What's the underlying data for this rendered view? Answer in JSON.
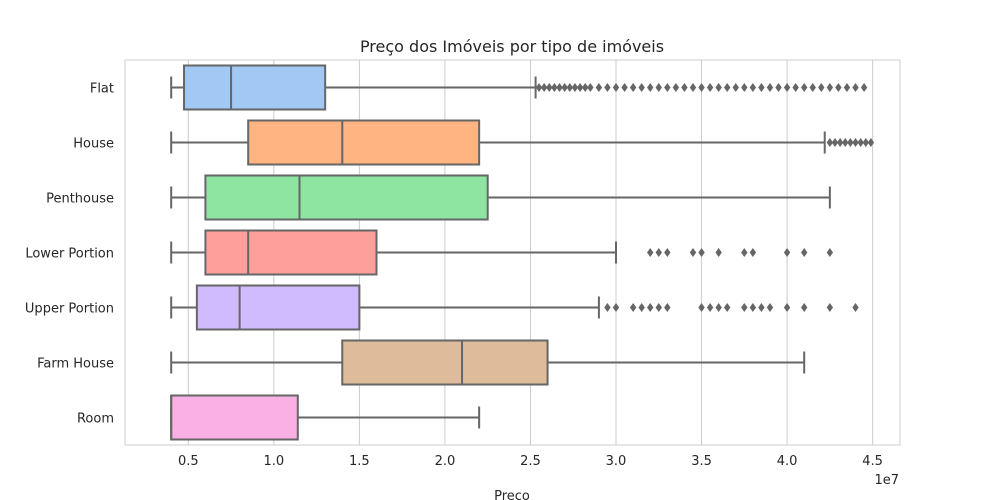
{
  "chart_data": {
    "type": "boxplot",
    "orientation": "horizontal",
    "title": "Preço dos Imóveis por tipo de imóveis",
    "xlabel": "Preco",
    "ylabel": "",
    "x_offset_label": "1e7",
    "xlim": [
      1.3,
      46.6
    ],
    "x_unit_multiplier": 1000000,
    "x_ticks": [
      5,
      10,
      15,
      20,
      25,
      30,
      35,
      40,
      45
    ],
    "x_tick_labels": [
      "0.5",
      "1.0",
      "1.5",
      "2.0",
      "2.5",
      "3.0",
      "3.5",
      "4.0",
      "4.5"
    ],
    "grid": true,
    "categories": [
      "Flat",
      "House",
      "Penthouse",
      "Lower Portion",
      "Upper Portion",
      "Farm House",
      "Room"
    ],
    "colors": [
      "#a1c9f4",
      "#ffb482",
      "#8de5a1",
      "#ff9f9b",
      "#d0bbff",
      "#debb9b",
      "#fab0e4"
    ],
    "series": [
      {
        "name": "Flat",
        "whisker_low": 4.0,
        "q1": 4.75,
        "median": 7.5,
        "q3": 13.0,
        "whisker_high": 25.3,
        "outliers": [
          25.5,
          25.8,
          26.1,
          26.4,
          26.7,
          27.0,
          27.3,
          27.6,
          27.9,
          28.2,
          28.5,
          29.0,
          29.5,
          30.0,
          30.5,
          31.0,
          31.5,
          32.0,
          32.5,
          33.0,
          33.5,
          34.0,
          34.5,
          35.0,
          35.5,
          36.0,
          36.5,
          37.0,
          37.5,
          38.0,
          38.5,
          39.0,
          39.5,
          40.0,
          40.5,
          41.0,
          41.5,
          42.0,
          42.5,
          43.0,
          43.5,
          44.0,
          44.5
        ]
      },
      {
        "name": "House",
        "whisker_low": 4.0,
        "q1": 8.5,
        "median": 14.0,
        "q3": 22.0,
        "whisker_high": 42.2,
        "outliers": [
          42.5,
          42.8,
          43.1,
          43.4,
          43.7,
          44.0,
          44.3,
          44.6,
          44.9
        ]
      },
      {
        "name": "Penthouse",
        "whisker_low": 4.0,
        "q1": 6.0,
        "median": 11.5,
        "q3": 22.5,
        "whisker_high": 42.5,
        "outliers": []
      },
      {
        "name": "Lower Portion",
        "whisker_low": 4.0,
        "q1": 6.0,
        "median": 8.5,
        "q3": 16.0,
        "whisker_high": 30.0,
        "outliers": [
          32.0,
          32.5,
          33.0,
          34.5,
          35.0,
          36.0,
          37.5,
          38.0,
          40.0,
          41.0,
          42.5
        ]
      },
      {
        "name": "Upper Portion",
        "whisker_low": 4.0,
        "q1": 5.5,
        "median": 8.0,
        "q3": 15.0,
        "whisker_high": 29.0,
        "outliers": [
          29.5,
          30.0,
          31.0,
          31.5,
          32.0,
          32.5,
          33.0,
          35.0,
          35.5,
          36.0,
          36.5,
          37.5,
          38.0,
          38.5,
          39.0,
          40.0,
          41.0,
          42.5,
          44.0
        ]
      },
      {
        "name": "Farm House",
        "whisker_low": 4.0,
        "q1": 14.0,
        "median": 21.0,
        "q3": 26.0,
        "whisker_high": 41.0,
        "outliers": []
      },
      {
        "name": "Room",
        "whisker_low": 4.0,
        "q1": 4.0,
        "median": 4.0,
        "q3": 11.4,
        "whisker_high": 22.0,
        "outliers": []
      }
    ]
  }
}
